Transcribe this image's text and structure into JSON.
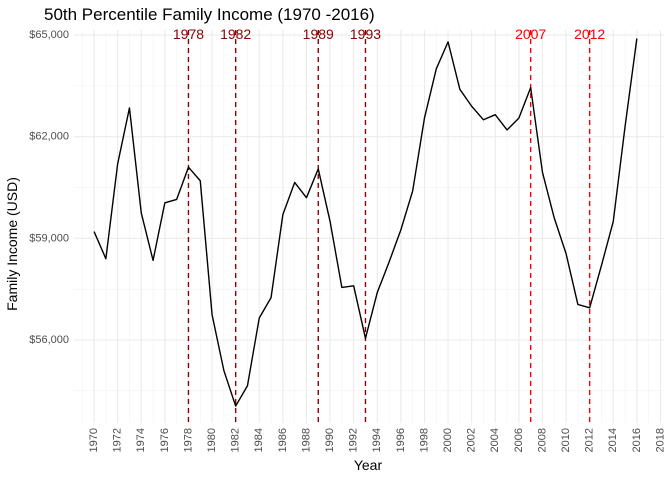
{
  "chart_data": {
    "type": "line",
    "title": "50th Percentile Family Income (1970 -2016)",
    "xlabel": "Year",
    "ylabel": "Family Income (USD)",
    "xlim": [
      1968.3,
      2018.3
    ],
    "ylim": [
      53550,
      65150
    ],
    "x_ticks": [
      1970,
      1972,
      1974,
      1976,
      1978,
      1980,
      1982,
      1984,
      1986,
      1988,
      1990,
      1992,
      1994,
      1996,
      1998,
      2000,
      2002,
      2004,
      2006,
      2008,
      2010,
      2012,
      2014,
      2016,
      2018
    ],
    "y_ticks": [
      {
        "value": 56000,
        "label": "$56,000"
      },
      {
        "value": 59000,
        "label": "$59,000"
      },
      {
        "value": 62000,
        "label": "$62,000"
      },
      {
        "value": 65000,
        "label": "$65,000"
      }
    ],
    "grid": true,
    "series": [
      {
        "x": [
          1970,
          1971,
          1972,
          1973,
          1974,
          1975,
          1976,
          1977,
          1978,
          1979,
          1980,
          1981,
          1982,
          1983,
          1984,
          1985,
          1986,
          1987,
          1988,
          1989,
          1990,
          1991,
          1992,
          1993,
          1994,
          1995,
          1996,
          1997,
          1998,
          1999,
          2000,
          2001,
          2002,
          2003,
          2004,
          2005,
          2006,
          2007,
          2008,
          2009,
          2010,
          2011,
          2012,
          2013,
          2014,
          2015,
          2016
        ],
        "values": [
          59200,
          58400,
          61200,
          62850,
          59750,
          58350,
          60050,
          60150,
          61100,
          60700,
          56750,
          55100,
          54050,
          54650,
          56650,
          57250,
          59700,
          60650,
          60200,
          61050,
          59500,
          57550,
          57600,
          56050,
          57400,
          58300,
          59250,
          60400,
          62550,
          64000,
          64800,
          63400,
          62900,
          62500,
          62650,
          62200,
          62550,
          63450,
          60950,
          59600,
          58550,
          57050,
          56950,
          58200,
          59500,
          62300,
          64900
        ],
        "color": "#000000"
      }
    ],
    "vlines": [
      {
        "x": 1978,
        "label": "1978",
        "color": "#8b0000"
      },
      {
        "x": 1982,
        "label": "1982",
        "color": "#8b0000"
      },
      {
        "x": 1989,
        "label": "1989",
        "color": "#8b0000"
      },
      {
        "x": 1993,
        "label": "1993",
        "color": "#8b0000"
      },
      {
        "x": 2007,
        "label": "2007",
        "color": "#ff0000"
      },
      {
        "x": 2012,
        "label": "2012",
        "color": "#ff0000"
      }
    ]
  }
}
